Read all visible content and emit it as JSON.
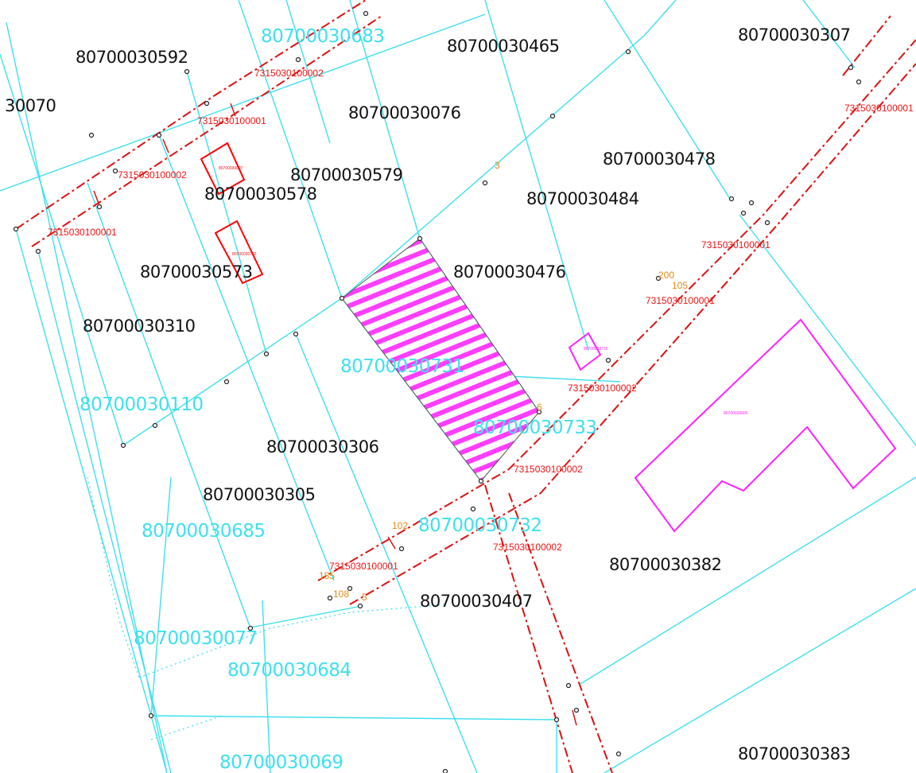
{
  "map": {
    "parcels_black": [
      "80700030592",
      "80700030465",
      "80700030307",
      "30070",
      "80700030076",
      "80700030478",
      "80700030579",
      "80700030578",
      "80700030484",
      "80700030573",
      "80700030476",
      "80700030310",
      "80700030306",
      "80700030305",
      "80700030382",
      "80700030407",
      "80700030383"
    ],
    "parcels_cyan": [
      "80700030683",
      "80700030731",
      "80700030110",
      "80700030733",
      "80700030685",
      "80700030732",
      "80700030077",
      "80700030684",
      "80700030069"
    ],
    "road_codes": [
      "7315030100002",
      "7315030100001",
      "7315030100002",
      "7315030100001",
      "7315030100001",
      "7315030100001",
      "7315030100001",
      "7315030100002",
      "7315030100002",
      "7315030100002",
      "7315030100001"
    ],
    "point_numbers": [
      "3",
      "6",
      "200",
      "105",
      "102",
      "185",
      "108",
      "5"
    ],
    "building_codes": [
      "80700030697",
      "80700030702",
      "80700030730",
      "80700030600"
    ],
    "colors": {
      "parcel_line": "#3ee0ee",
      "road": "#dd1111",
      "highlight": "#ff22ff",
      "building": "#ff0000",
      "label": "#111111"
    }
  }
}
